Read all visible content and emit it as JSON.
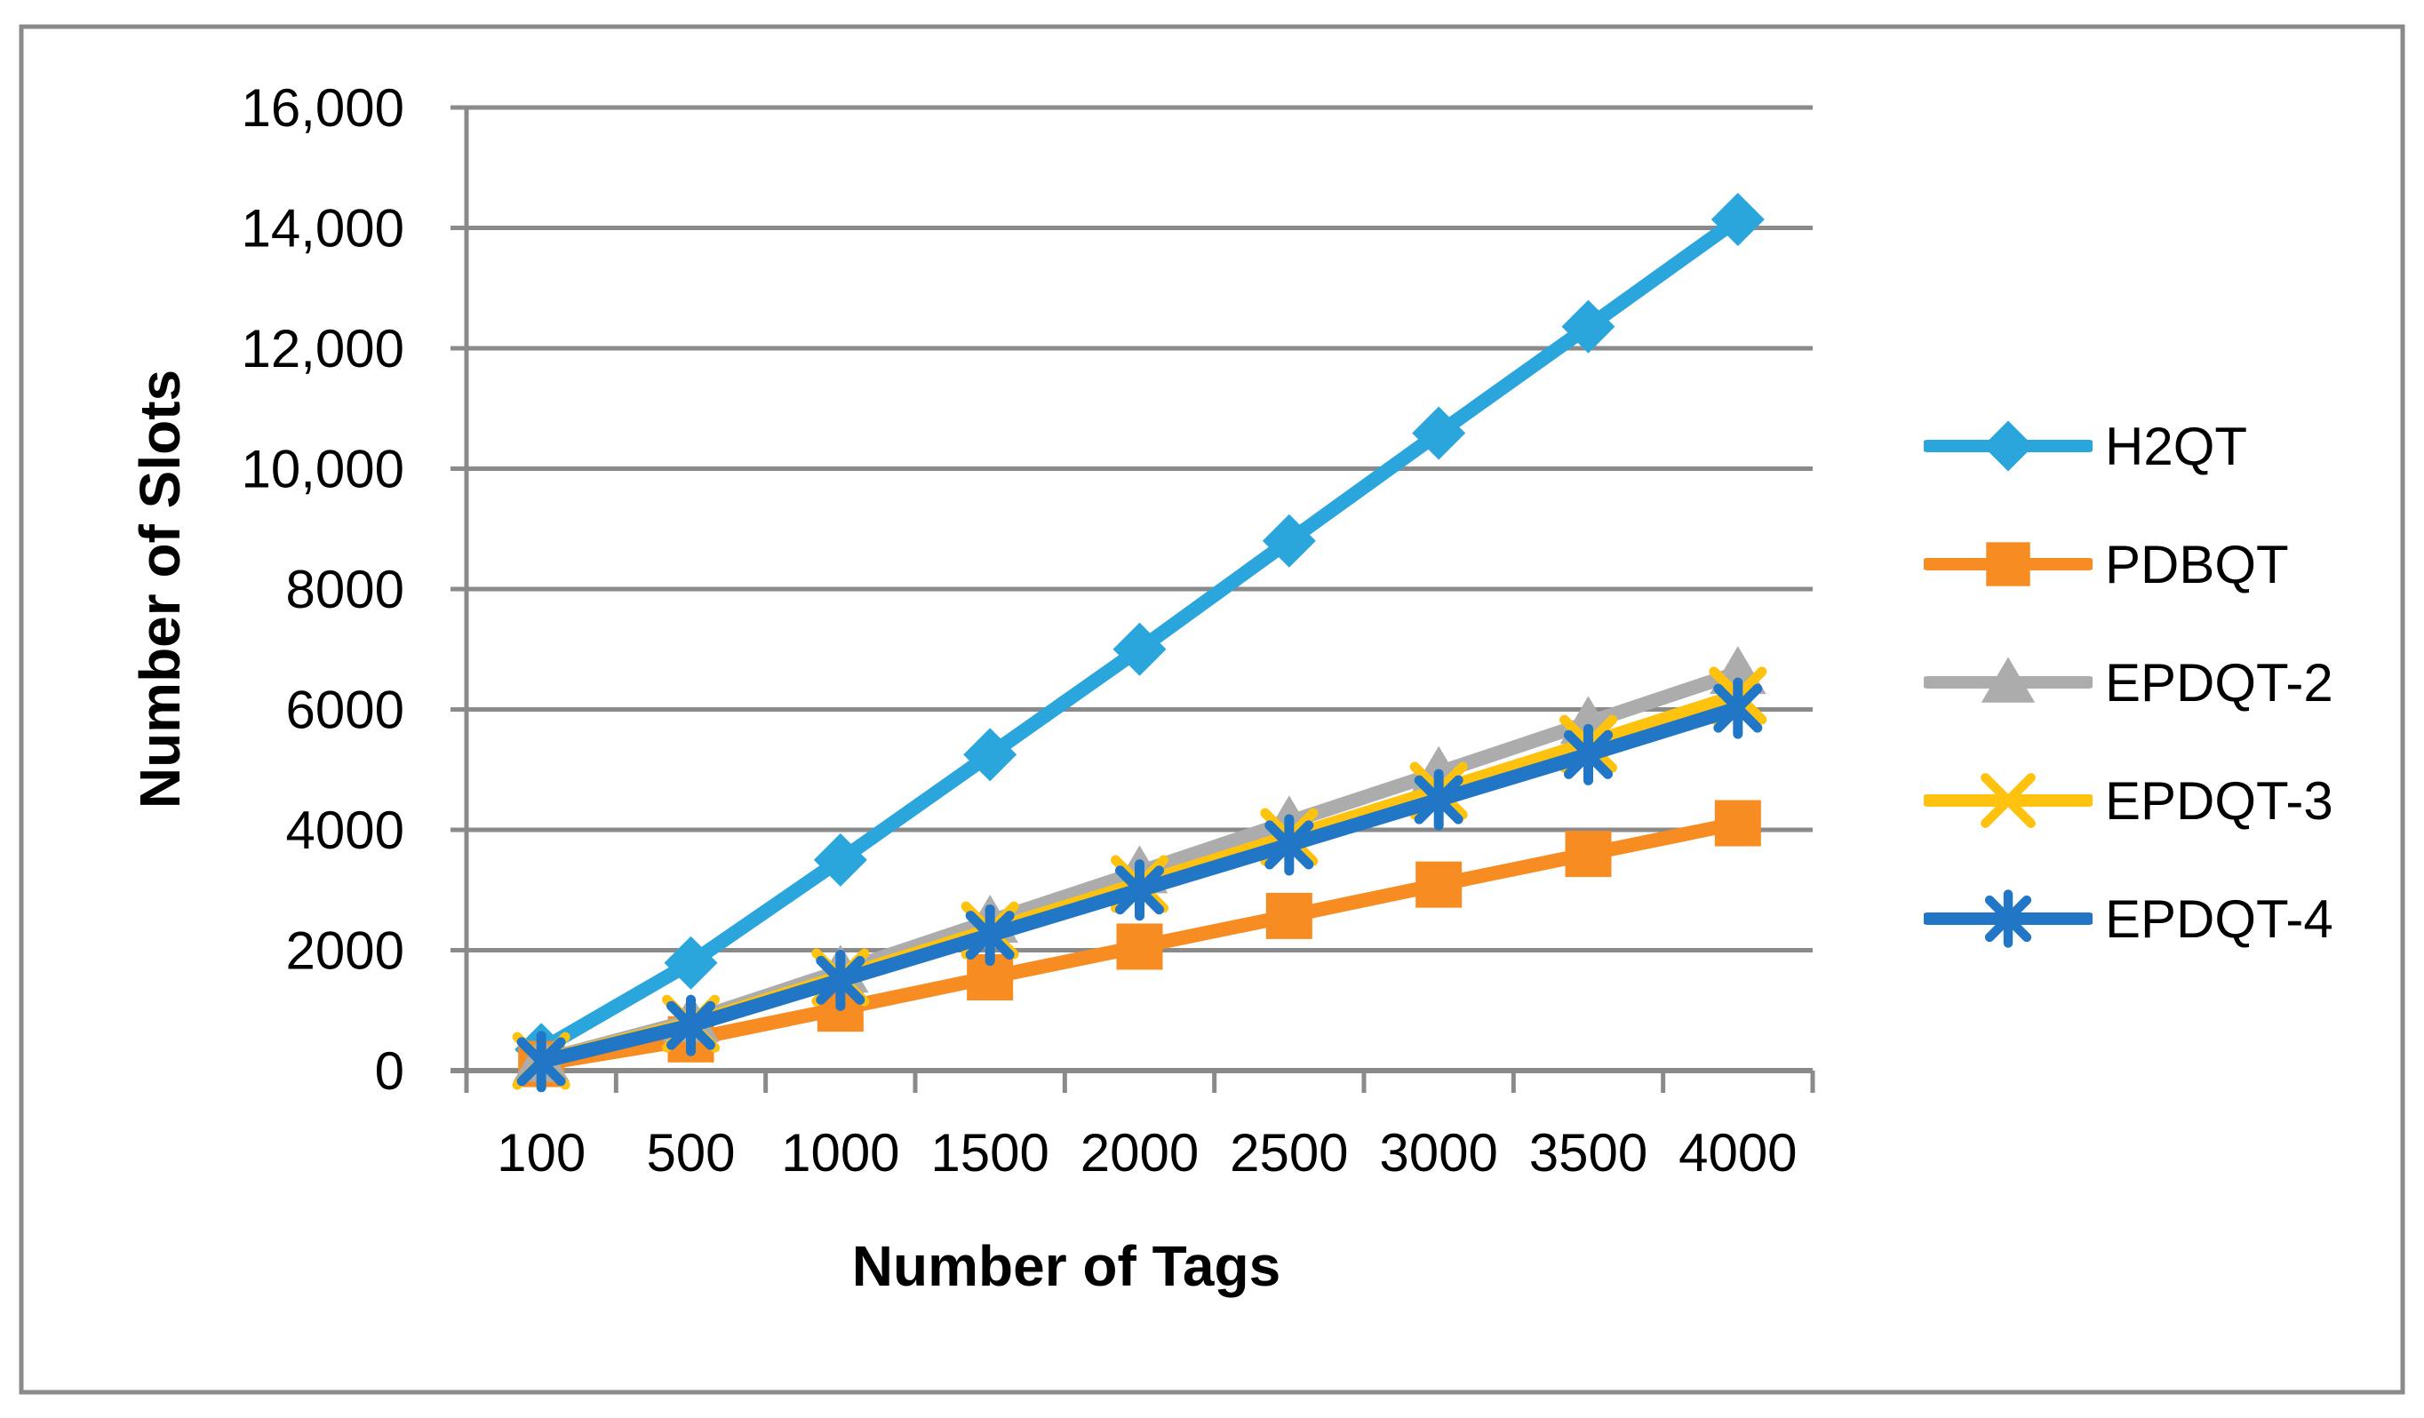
{
  "chart_data": {
    "type": "line",
    "title": "",
    "xlabel": "Number of Tags",
    "ylabel": "Number of Slots",
    "categories": [
      100,
      500,
      1000,
      1500,
      2000,
      2500,
      3000,
      3500,
      4000
    ],
    "x_tick_labels": [
      "100",
      "500",
      "1000",
      "1500",
      "2000",
      "2500",
      "3000",
      "3500",
      "4000"
    ],
    "y_ticks": [
      0,
      2000,
      4000,
      6000,
      8000,
      10000,
      12000,
      14000,
      16000
    ],
    "y_tick_labels": [
      "0",
      "2000",
      "4000",
      "6000",
      "8000",
      "10,000",
      "12,000",
      "14,000",
      "16,000"
    ],
    "ylim": [
      0,
      16000
    ],
    "grid": "horizontal",
    "legend_position": "right",
    "background": "#FFFFFF",
    "frame_color": "#8A8A8A",
    "axis_color": "#8A8A8A",
    "series": [
      {
        "name": "H2QT",
        "color": "#2BA6DC",
        "marker": "diamond",
        "values": [
          350,
          1790,
          3500,
          5250,
          7000,
          8800,
          10590,
          12360,
          14140
        ]
      },
      {
        "name": "PDBQT",
        "color": "#F68C22",
        "marker": "square",
        "values": [
          110,
          520,
          1030,
          1550,
          2060,
          2570,
          3090,
          3600,
          4110
        ]
      },
      {
        "name": "EPDQT-2",
        "color": "#ACACAC",
        "marker": "triangle",
        "values": [
          170,
          830,
          1650,
          2480,
          3300,
          4130,
          4950,
          5780,
          6610
        ]
      },
      {
        "name": "EPDQT-3",
        "color": "#FFC20E",
        "marker": "x",
        "values": [
          160,
          780,
          1550,
          2330,
          3100,
          3880,
          4650,
          5430,
          6230
        ]
      },
      {
        "name": "EPDQT-4",
        "color": "#2176C5",
        "marker": "asterisk",
        "values": [
          150,
          750,
          1500,
          2250,
          3000,
          3750,
          4500,
          5250,
          6020
        ]
      }
    ]
  }
}
